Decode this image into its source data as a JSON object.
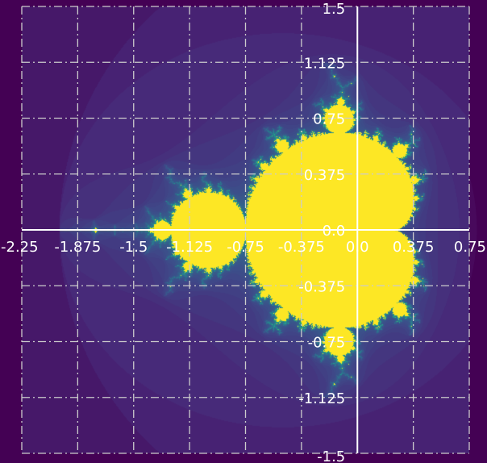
{
  "chart_data": {
    "type": "heatmap",
    "title": "",
    "xlabel": "",
    "ylabel": "",
    "xlim": [
      -2.25,
      0.75
    ],
    "ylim": [
      -1.5,
      1.5
    ],
    "x_ticks": [
      -2.25,
      -1.875,
      -1.5,
      -1.125,
      -0.75,
      -0.375,
      0.0,
      0.375,
      0.75
    ],
    "y_ticks": [
      -1.5,
      -1.125,
      -0.75,
      -0.375,
      0.0,
      0.375,
      0.75,
      1.125,
      1.5
    ],
    "x_tick_labels": [
      "-2.25",
      "-1.875",
      "-1.5",
      "-1.125",
      "-0.75",
      "-0.375",
      "0.0",
      "0.375",
      "0.75"
    ],
    "y_tick_labels": [
      "-1.5",
      "-1.125",
      "-0.75",
      "-0.375",
      "0.0",
      "0.375",
      "0.75",
      "1.125",
      "1.5"
    ],
    "grid": true,
    "grid_style": "dash-dot",
    "colormap": "viridis",
    "colors": {
      "background": "#440154",
      "set_interior": "#fde725",
      "boundary": "#21918c",
      "halo": "#5b4d9a",
      "axes": "#ffffff",
      "grid": "#cccccc"
    },
    "subject": "Mandelbrot set"
  }
}
